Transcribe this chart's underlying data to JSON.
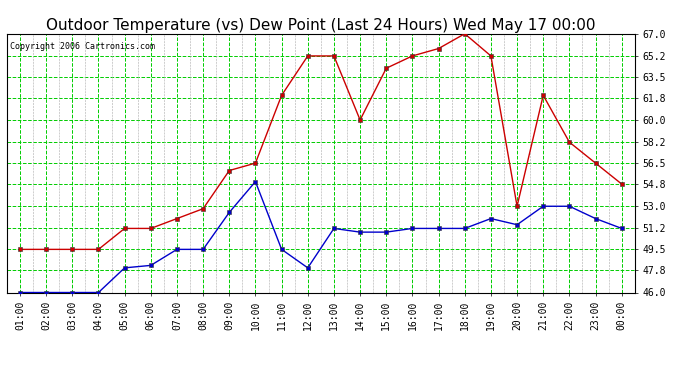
{
  "title": "Outdoor Temperature (vs) Dew Point (Last 24 Hours) Wed May 17 00:00",
  "copyright": "Copyright 2006 Cartronics.com",
  "x_labels": [
    "01:00",
    "02:00",
    "03:00",
    "04:00",
    "05:00",
    "06:00",
    "07:00",
    "08:00",
    "09:00",
    "10:00",
    "11:00",
    "12:00",
    "13:00",
    "14:00",
    "15:00",
    "16:00",
    "17:00",
    "18:00",
    "19:00",
    "20:00",
    "21:00",
    "22:00",
    "23:00",
    "00:00"
  ],
  "temp_data": [
    49.5,
    49.5,
    49.5,
    49.5,
    51.2,
    51.2,
    52.0,
    52.8,
    55.9,
    56.5,
    62.0,
    65.2,
    65.2,
    60.0,
    64.2,
    65.2,
    65.8,
    67.0,
    65.2,
    53.0,
    62.0,
    58.2,
    56.5,
    54.8
  ],
  "dew_data": [
    46.0,
    46.0,
    46.0,
    46.0,
    48.0,
    48.2,
    49.5,
    49.5,
    52.5,
    55.0,
    49.5,
    48.0,
    51.2,
    50.9,
    50.9,
    51.2,
    51.2,
    51.2,
    52.0,
    51.5,
    53.0,
    53.0,
    52.0,
    51.2
  ],
  "y_ticks": [
    46.0,
    47.8,
    49.5,
    51.2,
    53.0,
    54.8,
    56.5,
    58.2,
    60.0,
    61.8,
    63.5,
    65.2,
    67.0
  ],
  "y_min": 46.0,
  "y_max": 67.0,
  "temp_color": "#cc0000",
  "dew_color": "#0000cc",
  "bg_color": "#ffffff",
  "grid_major_color": "#00cc00",
  "grid_minor_color": "#aaaaaa",
  "title_fontsize": 11,
  "copyright_fontsize": 6,
  "tick_fontsize": 7
}
